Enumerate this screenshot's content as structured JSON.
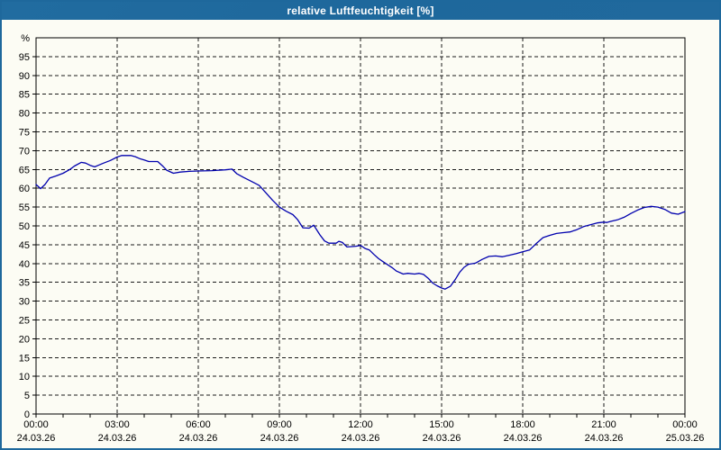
{
  "window": {
    "title": "relative Luftfeuchtigkeit [%]"
  },
  "colors": {
    "titlebar_bg": "#1e689c",
    "titlebar_text": "#ffffff",
    "window_border": "#1e689c",
    "window_bg": "#fcfcf4",
    "grid": "#1a1a1a",
    "frame": "#000000",
    "line": "#0000ae",
    "label": "#000000"
  },
  "chart_data": {
    "type": "line",
    "title": "relative Luftfeuchtigkeit [%]",
    "xlabel": "",
    "ylabel": "%",
    "ylim": [
      0,
      100
    ],
    "ytick_step": 5,
    "ytick_min": 0,
    "ytick_max": 95,
    "ytop_label": "%",
    "grid": "dashed",
    "legend_position": "none",
    "x_hours_range": [
      0,
      24
    ],
    "x_minor_tick_hours": 1,
    "x_major_ticks": [
      {
        "hour": 0,
        "time": "00:00",
        "date": "24.03.26"
      },
      {
        "hour": 3,
        "time": "03:00",
        "date": "24.03.26"
      },
      {
        "hour": 6,
        "time": "06:00",
        "date": "24.03.26"
      },
      {
        "hour": 9,
        "time": "09:00",
        "date": "24.03.26"
      },
      {
        "hour": 12,
        "time": "12:00",
        "date": "24.03.26"
      },
      {
        "hour": 15,
        "time": "15:00",
        "date": "24.03.26"
      },
      {
        "hour": 18,
        "time": "18:00",
        "date": "24.03.26"
      },
      {
        "hour": 21,
        "time": "21:00",
        "date": "24.03.26"
      },
      {
        "hour": 24,
        "time": "00:00",
        "date": "25.03.26"
      }
    ],
    "series": [
      {
        "name": "relative Luftfeuchtigkeit",
        "unit": "%",
        "color": "#0000ae",
        "points": [
          [
            0.0,
            61.0
          ],
          [
            0.17,
            59.9
          ],
          [
            0.33,
            61.0
          ],
          [
            0.5,
            62.7
          ],
          [
            0.75,
            63.3
          ],
          [
            1.0,
            64.0
          ],
          [
            1.25,
            65.0
          ],
          [
            1.42,
            65.9
          ],
          [
            1.67,
            66.9
          ],
          [
            1.83,
            66.7
          ],
          [
            2.0,
            66.1
          ],
          [
            2.17,
            65.7
          ],
          [
            2.33,
            66.2
          ],
          [
            2.5,
            66.7
          ],
          [
            2.75,
            67.4
          ],
          [
            3.0,
            68.3
          ],
          [
            3.17,
            68.7
          ],
          [
            3.5,
            68.7
          ],
          [
            3.67,
            68.4
          ],
          [
            3.83,
            67.9
          ],
          [
            4.0,
            67.5
          ],
          [
            4.17,
            67.1
          ],
          [
            4.5,
            67.1
          ],
          [
            4.67,
            66.0
          ],
          [
            4.83,
            64.8
          ],
          [
            5.08,
            64.0
          ],
          [
            5.33,
            64.3
          ],
          [
            5.67,
            64.5
          ],
          [
            6.0,
            64.6
          ],
          [
            6.5,
            64.7
          ],
          [
            7.0,
            64.9
          ],
          [
            7.25,
            65.1
          ],
          [
            7.42,
            63.9
          ],
          [
            7.67,
            62.9
          ],
          [
            8.0,
            61.7
          ],
          [
            8.25,
            60.8
          ],
          [
            8.5,
            58.8
          ],
          [
            8.75,
            56.8
          ],
          [
            9.0,
            55.0
          ],
          [
            9.25,
            53.9
          ],
          [
            9.5,
            53.0
          ],
          [
            9.67,
            51.7
          ],
          [
            9.87,
            49.5
          ],
          [
            10.1,
            49.4
          ],
          [
            10.27,
            50.2
          ],
          [
            10.5,
            47.6
          ],
          [
            10.67,
            46.0
          ],
          [
            10.83,
            45.4
          ],
          [
            11.1,
            45.4
          ],
          [
            11.2,
            45.9
          ],
          [
            11.33,
            45.6
          ],
          [
            11.5,
            44.4
          ],
          [
            11.83,
            44.6
          ],
          [
            12.0,
            44.8
          ],
          [
            12.17,
            44.0
          ],
          [
            12.33,
            43.6
          ],
          [
            12.5,
            42.4
          ],
          [
            12.67,
            41.3
          ],
          [
            12.83,
            40.5
          ],
          [
            13.0,
            39.7
          ],
          [
            13.17,
            38.9
          ],
          [
            13.33,
            38.0
          ],
          [
            13.58,
            37.2
          ],
          [
            13.75,
            37.4
          ],
          [
            14.0,
            37.2
          ],
          [
            14.17,
            37.4
          ],
          [
            14.33,
            37.1
          ],
          [
            14.5,
            36.1
          ],
          [
            14.67,
            34.8
          ],
          [
            14.83,
            34.1
          ],
          [
            15.0,
            33.5
          ],
          [
            15.13,
            33.2
          ],
          [
            15.33,
            34.0
          ],
          [
            15.5,
            35.7
          ],
          [
            15.67,
            37.7
          ],
          [
            15.83,
            39.0
          ],
          [
            16.0,
            39.8
          ],
          [
            16.25,
            40.1
          ],
          [
            16.5,
            41.1
          ],
          [
            16.75,
            41.9
          ],
          [
            17.0,
            42.0
          ],
          [
            17.25,
            41.8
          ],
          [
            17.5,
            42.2
          ],
          [
            17.75,
            42.6
          ],
          [
            18.0,
            43.1
          ],
          [
            18.25,
            43.6
          ],
          [
            18.5,
            45.3
          ],
          [
            18.75,
            46.9
          ],
          [
            19.0,
            47.5
          ],
          [
            19.25,
            48.0
          ],
          [
            19.5,
            48.2
          ],
          [
            19.75,
            48.4
          ],
          [
            20.0,
            49.0
          ],
          [
            20.25,
            49.8
          ],
          [
            20.5,
            50.3
          ],
          [
            20.75,
            50.8
          ],
          [
            21.0,
            51.0
          ],
          [
            21.1,
            50.9
          ],
          [
            21.25,
            51.2
          ],
          [
            21.5,
            51.6
          ],
          [
            21.75,
            52.3
          ],
          [
            22.0,
            53.3
          ],
          [
            22.25,
            54.2
          ],
          [
            22.5,
            54.9
          ],
          [
            22.75,
            55.2
          ],
          [
            23.0,
            55.0
          ],
          [
            23.25,
            54.4
          ],
          [
            23.5,
            53.4
          ],
          [
            23.75,
            53.1
          ],
          [
            24.0,
            53.8
          ]
        ]
      }
    ]
  }
}
